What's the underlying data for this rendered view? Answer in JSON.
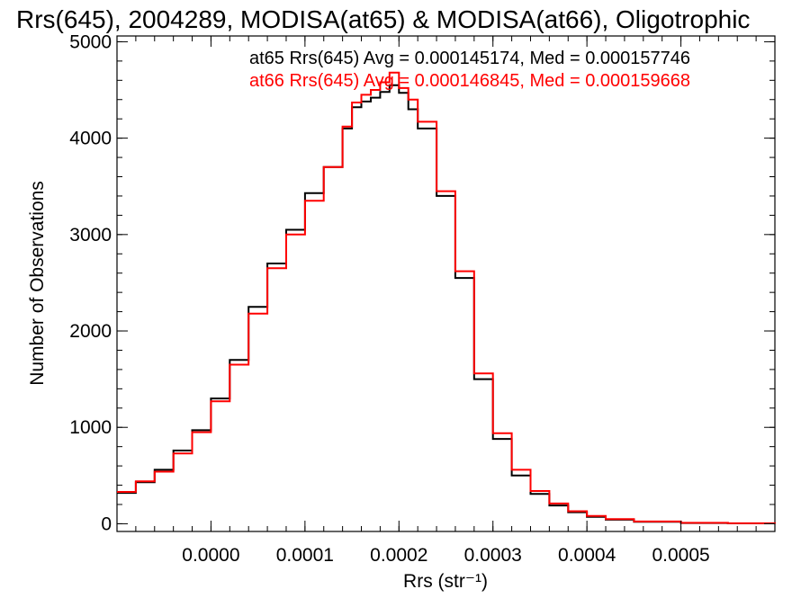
{
  "colors": {
    "background": "#ffffff",
    "axes": "#000000",
    "at65": "#000000",
    "at66": "#ff0000"
  },
  "chart_data": {
    "type": "line",
    "step": true,
    "title": "Rrs(645), 2004289, MODISA(at65) & MODISA(at66), Oligotrophic",
    "xlabel": "Rrs (str⁻¹)",
    "ylabel": "Number of Observations",
    "xlim": [
      -0.0001,
      0.0006
    ],
    "ylim": [
      -80,
      5060
    ],
    "x_ticks": [
      "0.0000",
      "0.0001",
      "0.0002",
      "0.0003",
      "0.0004",
      "0.0005"
    ],
    "x_tick_values": [
      0.0,
      0.0001,
      0.0002,
      0.0003,
      0.0004,
      0.0005
    ],
    "y_ticks": [
      "0",
      "1000",
      "2000",
      "3000",
      "4000",
      "5000"
    ],
    "y_tick_values": [
      0,
      1000,
      2000,
      3000,
      4000,
      5000
    ],
    "grid": false,
    "legend_position": "top-right",
    "annotations": [
      "at65 Rrs(645) Avg = 0.000145174, Med = 0.000157746",
      "at66 Rrs(645) Avg = 0.000146845, Med = 0.000159668"
    ],
    "x": [
      -0.0001,
      -8e-05,
      -6e-05,
      -4e-05,
      -2e-05,
      0.0,
      2e-05,
      4e-05,
      6e-05,
      8e-05,
      0.0001,
      0.00012,
      0.00014,
      0.00015,
      0.00016,
      0.00017,
      0.00018,
      0.00019,
      0.0002,
      0.00021,
      0.00022,
      0.00024,
      0.00026,
      0.00028,
      0.0003,
      0.00032,
      0.00034,
      0.00036,
      0.00038,
      0.0004,
      0.00042,
      0.00045,
      0.0005,
      0.00055,
      0.0006
    ],
    "series": [
      {
        "name": "at65",
        "color": "#000000",
        "values": [
          320,
          430,
          560,
          760,
          970,
          1300,
          1700,
          2250,
          2700,
          3050,
          3430,
          3700,
          4100,
          4320,
          4380,
          4420,
          4480,
          4550,
          4470,
          4300,
          4100,
          3400,
          2550,
          1500,
          880,
          500,
          310,
          190,
          120,
          72,
          42,
          20,
          8,
          4,
          2
        ]
      },
      {
        "name": "at66",
        "color": "#ff0000",
        "values": [
          330,
          440,
          540,
          730,
          950,
          1270,
          1650,
          2180,
          2650,
          3000,
          3350,
          3700,
          4120,
          4370,
          4450,
          4500,
          4580,
          4680,
          4520,
          4400,
          4170,
          3450,
          2620,
          1560,
          940,
          560,
          340,
          210,
          130,
          80,
          48,
          24,
          10,
          5,
          2
        ]
      }
    ]
  }
}
